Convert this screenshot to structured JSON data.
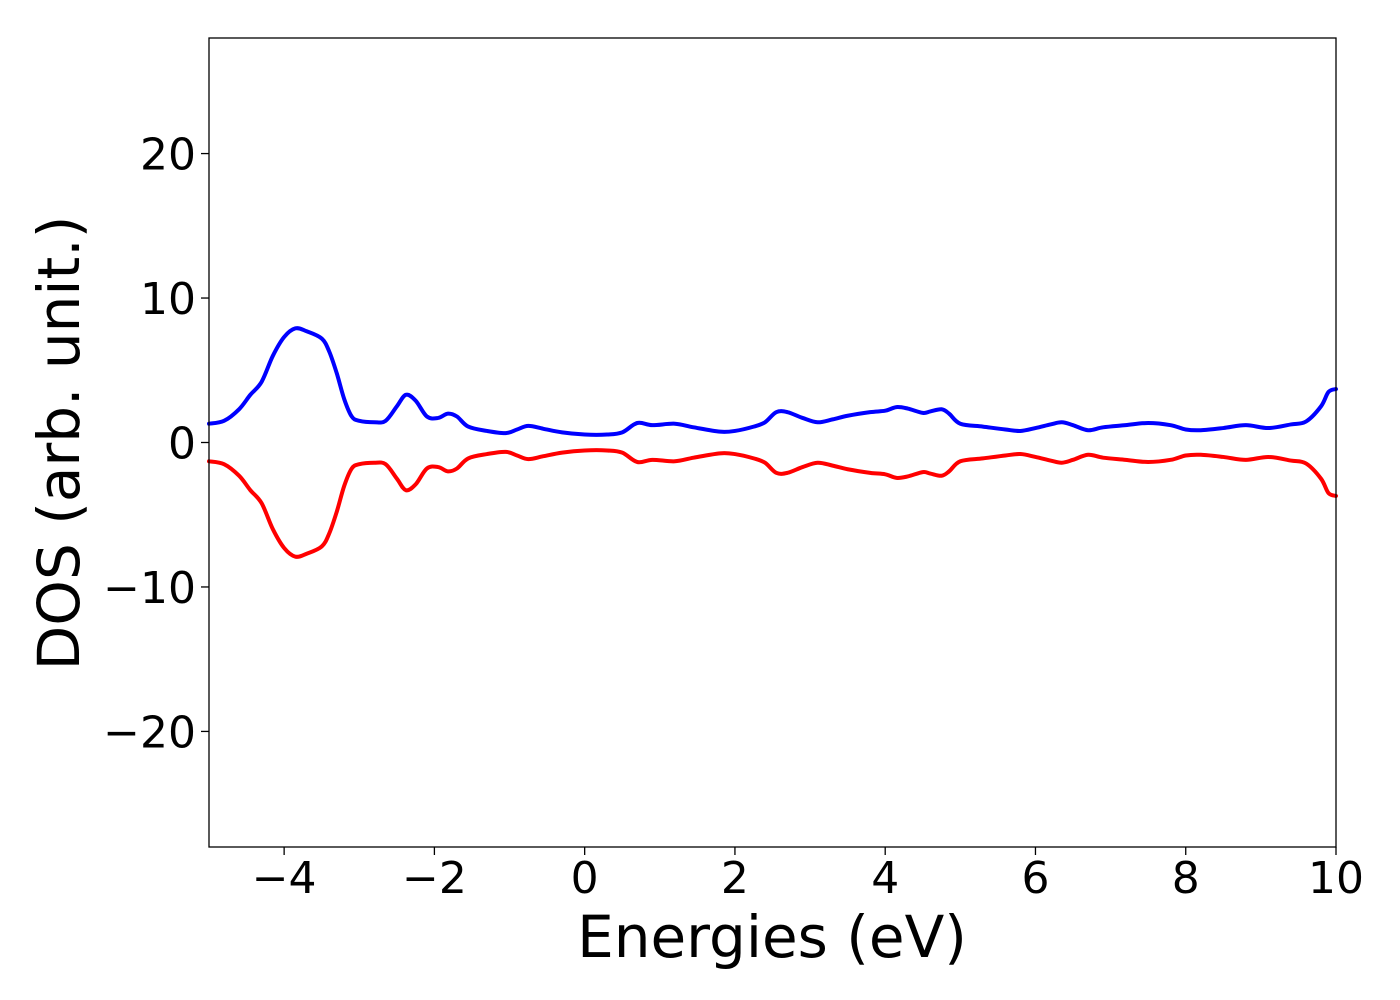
{
  "chart_data": {
    "type": "line",
    "title": "",
    "xlabel": "Energies (eV)",
    "ylabel": "DOS (arb. unit.)",
    "xlim": [
      -5,
      10
    ],
    "ylim": [
      -28,
      28
    ],
    "xticks": [
      -4,
      -2,
      0,
      2,
      4,
      6,
      8,
      10
    ],
    "xtick_labels": [
      "−4",
      "−2",
      "0",
      "2",
      "4",
      "6",
      "8",
      "10"
    ],
    "yticks": [
      -20,
      -10,
      0,
      10,
      20
    ],
    "ytick_labels": [
      "−20",
      "−10",
      "0",
      "10",
      "20"
    ],
    "grid": false,
    "legend": "none",
    "series": [
      {
        "color": "#0000ff",
        "points": [
          [
            -5.0,
            1.3
          ],
          [
            -4.8,
            1.5
          ],
          [
            -4.6,
            2.3
          ],
          [
            -4.45,
            3.3
          ],
          [
            -4.3,
            4.2
          ],
          [
            -4.15,
            6.0
          ],
          [
            -4.0,
            7.3
          ],
          [
            -3.85,
            7.9
          ],
          [
            -3.7,
            7.7
          ],
          [
            -3.5,
            7.2
          ],
          [
            -3.4,
            6.3
          ],
          [
            -3.3,
            4.8
          ],
          [
            -3.2,
            3.0
          ],
          [
            -3.1,
            1.8
          ],
          [
            -3.0,
            1.5
          ],
          [
            -2.8,
            1.4
          ],
          [
            -2.65,
            1.5
          ],
          [
            -2.5,
            2.5
          ],
          [
            -2.38,
            3.3
          ],
          [
            -2.25,
            2.9
          ],
          [
            -2.1,
            1.8
          ],
          [
            -1.95,
            1.7
          ],
          [
            -1.82,
            2.0
          ],
          [
            -1.7,
            1.8
          ],
          [
            -1.55,
            1.1
          ],
          [
            -1.3,
            0.8
          ],
          [
            -1.05,
            0.65
          ],
          [
            -0.9,
            0.9
          ],
          [
            -0.75,
            1.15
          ],
          [
            -0.55,
            0.95
          ],
          [
            -0.3,
            0.7
          ],
          [
            0.0,
            0.55
          ],
          [
            0.3,
            0.55
          ],
          [
            0.5,
            0.7
          ],
          [
            0.7,
            1.35
          ],
          [
            0.9,
            1.2
          ],
          [
            1.2,
            1.3
          ],
          [
            1.45,
            1.05
          ],
          [
            1.8,
            0.75
          ],
          [
            2.0,
            0.8
          ],
          [
            2.25,
            1.1
          ],
          [
            2.4,
            1.4
          ],
          [
            2.55,
            2.1
          ],
          [
            2.7,
            2.1
          ],
          [
            2.9,
            1.7
          ],
          [
            3.1,
            1.4
          ],
          [
            3.3,
            1.6
          ],
          [
            3.5,
            1.85
          ],
          [
            3.8,
            2.1
          ],
          [
            4.0,
            2.2
          ],
          [
            4.15,
            2.45
          ],
          [
            4.3,
            2.35
          ],
          [
            4.5,
            2.05
          ],
          [
            4.6,
            2.15
          ],
          [
            4.75,
            2.3
          ],
          [
            4.85,
            2.0
          ],
          [
            5.0,
            1.3
          ],
          [
            5.3,
            1.1
          ],
          [
            5.6,
            0.9
          ],
          [
            5.8,
            0.8
          ],
          [
            6.0,
            1.0
          ],
          [
            6.2,
            1.25
          ],
          [
            6.35,
            1.4
          ],
          [
            6.5,
            1.2
          ],
          [
            6.7,
            0.85
          ],
          [
            6.9,
            1.05
          ],
          [
            7.2,
            1.2
          ],
          [
            7.5,
            1.35
          ],
          [
            7.8,
            1.2
          ],
          [
            8.0,
            0.9
          ],
          [
            8.2,
            0.85
          ],
          [
            8.5,
            1.0
          ],
          [
            8.8,
            1.2
          ],
          [
            9.1,
            1.0
          ],
          [
            9.4,
            1.25
          ],
          [
            9.6,
            1.45
          ],
          [
            9.8,
            2.5
          ],
          [
            9.9,
            3.5
          ],
          [
            10.0,
            3.7
          ]
        ]
      },
      {
        "color": "#ff0000",
        "points": [
          [
            -5.0,
            -1.3
          ],
          [
            -4.8,
            -1.5
          ],
          [
            -4.6,
            -2.3
          ],
          [
            -4.45,
            -3.3
          ],
          [
            -4.3,
            -4.2
          ],
          [
            -4.15,
            -6.0
          ],
          [
            -4.0,
            -7.3
          ],
          [
            -3.85,
            -7.9
          ],
          [
            -3.7,
            -7.7
          ],
          [
            -3.5,
            -7.2
          ],
          [
            -3.4,
            -6.3
          ],
          [
            -3.3,
            -4.8
          ],
          [
            -3.2,
            -3.0
          ],
          [
            -3.1,
            -1.8
          ],
          [
            -3.0,
            -1.5
          ],
          [
            -2.8,
            -1.4
          ],
          [
            -2.65,
            -1.5
          ],
          [
            -2.5,
            -2.5
          ],
          [
            -2.38,
            -3.3
          ],
          [
            -2.25,
            -2.9
          ],
          [
            -2.1,
            -1.8
          ],
          [
            -1.95,
            -1.7
          ],
          [
            -1.82,
            -2.0
          ],
          [
            -1.7,
            -1.8
          ],
          [
            -1.55,
            -1.1
          ],
          [
            -1.3,
            -0.8
          ],
          [
            -1.05,
            -0.65
          ],
          [
            -0.9,
            -0.9
          ],
          [
            -0.75,
            -1.15
          ],
          [
            -0.55,
            -0.95
          ],
          [
            -0.3,
            -0.7
          ],
          [
            0.0,
            -0.55
          ],
          [
            0.3,
            -0.55
          ],
          [
            0.5,
            -0.7
          ],
          [
            0.7,
            -1.35
          ],
          [
            0.9,
            -1.2
          ],
          [
            1.2,
            -1.3
          ],
          [
            1.45,
            -1.05
          ],
          [
            1.8,
            -0.75
          ],
          [
            2.0,
            -0.8
          ],
          [
            2.25,
            -1.1
          ],
          [
            2.4,
            -1.4
          ],
          [
            2.55,
            -2.1
          ],
          [
            2.7,
            -2.1
          ],
          [
            2.9,
            -1.7
          ],
          [
            3.1,
            -1.4
          ],
          [
            3.3,
            -1.6
          ],
          [
            3.5,
            -1.85
          ],
          [
            3.8,
            -2.1
          ],
          [
            4.0,
            -2.2
          ],
          [
            4.15,
            -2.45
          ],
          [
            4.3,
            -2.35
          ],
          [
            4.5,
            -2.05
          ],
          [
            4.6,
            -2.15
          ],
          [
            4.75,
            -2.3
          ],
          [
            4.85,
            -2.0
          ],
          [
            5.0,
            -1.3
          ],
          [
            5.3,
            -1.1
          ],
          [
            5.6,
            -0.9
          ],
          [
            5.8,
            -0.8
          ],
          [
            6.0,
            -1.0
          ],
          [
            6.2,
            -1.25
          ],
          [
            6.35,
            -1.4
          ],
          [
            6.5,
            -1.2
          ],
          [
            6.7,
            -0.85
          ],
          [
            6.9,
            -1.05
          ],
          [
            7.2,
            -1.2
          ],
          [
            7.5,
            -1.35
          ],
          [
            7.8,
            -1.2
          ],
          [
            8.0,
            -0.9
          ],
          [
            8.2,
            -0.85
          ],
          [
            8.5,
            -1.0
          ],
          [
            8.8,
            -1.2
          ],
          [
            9.1,
            -1.0
          ],
          [
            9.4,
            -1.25
          ],
          [
            9.6,
            -1.45
          ],
          [
            9.8,
            -2.5
          ],
          [
            9.9,
            -3.5
          ],
          [
            10.0,
            -3.7
          ]
        ]
      }
    ]
  }
}
